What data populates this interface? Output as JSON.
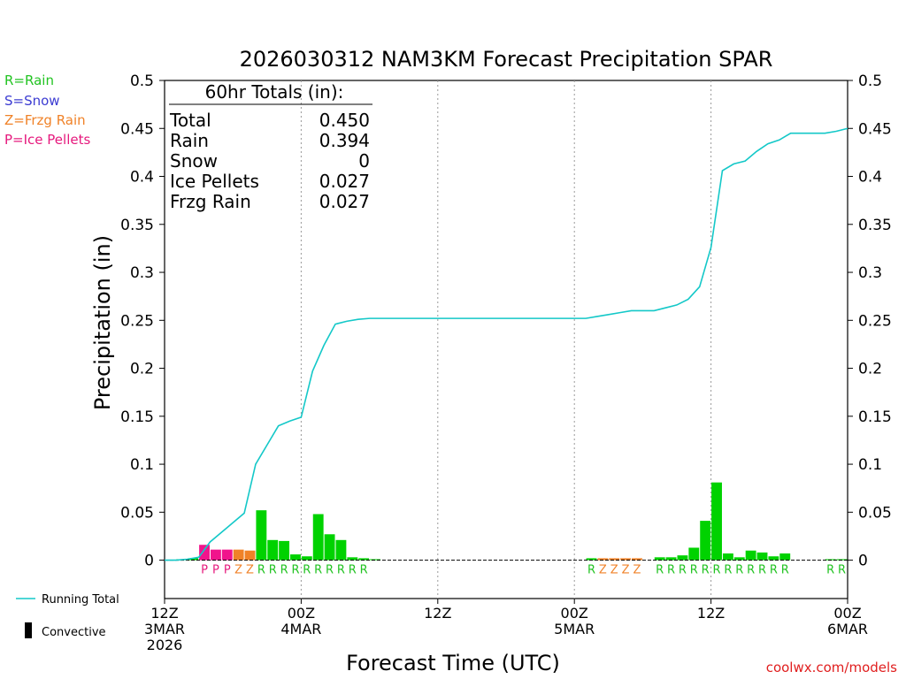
{
  "chart_data": {
    "type": "bar",
    "title": "2026030312 NAM3KM Forecast Precipitation SPAR",
    "xlabel": "Forecast Time (UTC)",
    "ylabel": "Precipitation (in)",
    "ylim": [
      -0.04,
      0.5
    ],
    "xlim_hours": [
      0,
      60
    ],
    "y_ticks": [
      "0.5",
      "0.45",
      "0.4",
      "0.35",
      "0.3",
      "0.25",
      "0.2",
      "0.15",
      "0.1",
      "0.05",
      "0"
    ],
    "x_ticks": [
      {
        "hour": 0,
        "lines": [
          "12Z",
          "3MAR",
          "2026"
        ]
      },
      {
        "hour": 12,
        "lines": [
          "00Z",
          "4MAR"
        ]
      },
      {
        "hour": 24,
        "lines": [
          "12Z"
        ]
      },
      {
        "hour": 36,
        "lines": [
          "00Z",
          "5MAR"
        ]
      },
      {
        "hour": 48,
        "lines": [
          "12Z"
        ]
      },
      {
        "hour": 60,
        "lines": [
          "00Z",
          "6MAR"
        ]
      }
    ],
    "totals": {
      "heading": "60hr Totals (in):",
      "rows": [
        {
          "label": "Total",
          "value": "0.450"
        },
        {
          "label": "Rain",
          "value": "0.394"
        },
        {
          "label": "Snow",
          "value": "0"
        },
        {
          "label": "Ice Pellets",
          "value": "0.027"
        },
        {
          "label": "Frzg Rain",
          "value": "0.027"
        }
      ]
    },
    "type_legend": [
      {
        "text": "R=Rain",
        "color": "#22c322"
      },
      {
        "text": "S=Snow",
        "color": "#3c3cd2"
      },
      {
        "text": "Z=Frzg Rain",
        "color": "#f08228"
      },
      {
        "text": "P=Ice Pellets",
        "color": "#e6197d"
      }
    ],
    "line_legend": {
      "running_total": "Running Total",
      "convective": "Convective"
    },
    "colors": {
      "R": "#00d200",
      "Z": "#f08228",
      "P": "#f0148c",
      "running_total": "#14c8c8",
      "convective": "#000000"
    },
    "letter_colors": {
      "R": "#22c322",
      "Z": "#f08228",
      "P": "#e6197d"
    },
    "hourly": [
      {
        "h": 1,
        "v": 0.0,
        "type": ""
      },
      {
        "h": 2,
        "v": 0.001,
        "type": ""
      },
      {
        "h": 3,
        "v": 0.002,
        "type": ""
      },
      {
        "h": 4,
        "v": 0.016,
        "type": "P"
      },
      {
        "h": 5,
        "v": 0.011,
        "type": "P"
      },
      {
        "h": 6,
        "v": 0.011,
        "type": "P"
      },
      {
        "h": 7,
        "v": 0.011,
        "type": "Z"
      },
      {
        "h": 8,
        "v": 0.01,
        "type": "Z"
      },
      {
        "h": 9,
        "v": 0.052,
        "type": "R"
      },
      {
        "h": 10,
        "v": 0.021,
        "type": "R"
      },
      {
        "h": 11,
        "v": 0.02,
        "type": "R"
      },
      {
        "h": 12,
        "v": 0.006,
        "type": "R"
      },
      {
        "h": 13,
        "v": 0.004,
        "type": "R"
      },
      {
        "h": 14,
        "v": 0.048,
        "type": "R"
      },
      {
        "h": 15,
        "v": 0.027,
        "type": "R"
      },
      {
        "h": 16,
        "v": 0.021,
        "type": "R"
      },
      {
        "h": 17,
        "v": 0.003,
        "type": "R"
      },
      {
        "h": 18,
        "v": 0.002,
        "type": "R"
      },
      {
        "h": 19,
        "v": 0.001,
        "type": ""
      },
      {
        "h": 20,
        "v": 0.0,
        "type": ""
      },
      {
        "h": 21,
        "v": 0.0,
        "type": ""
      },
      {
        "h": 22,
        "v": 0.0,
        "type": ""
      },
      {
        "h": 23,
        "v": 0.0,
        "type": ""
      },
      {
        "h": 24,
        "v": 0.0,
        "type": ""
      },
      {
        "h": 25,
        "v": 0.0,
        "type": ""
      },
      {
        "h": 26,
        "v": 0.0,
        "type": ""
      },
      {
        "h": 27,
        "v": 0.0,
        "type": ""
      },
      {
        "h": 28,
        "v": 0.0,
        "type": ""
      },
      {
        "h": 29,
        "v": 0.0,
        "type": ""
      },
      {
        "h": 30,
        "v": 0.0,
        "type": ""
      },
      {
        "h": 31,
        "v": 0.0,
        "type": ""
      },
      {
        "h": 32,
        "v": 0.0,
        "type": ""
      },
      {
        "h": 33,
        "v": 0.0,
        "type": ""
      },
      {
        "h": 34,
        "v": 0.0,
        "type": ""
      },
      {
        "h": 35,
        "v": 0.0,
        "type": ""
      },
      {
        "h": 36,
        "v": 0.0,
        "type": ""
      },
      {
        "h": 37,
        "v": 0.0,
        "type": ""
      },
      {
        "h": 38,
        "v": 0.002,
        "type": "R"
      },
      {
        "h": 39,
        "v": 0.002,
        "type": "Z"
      },
      {
        "h": 40,
        "v": 0.002,
        "type": "Z"
      },
      {
        "h": 41,
        "v": 0.002,
        "type": "Z"
      },
      {
        "h": 42,
        "v": 0.002,
        "type": "Z"
      },
      {
        "h": 43,
        "v": 0.0,
        "type": ""
      },
      {
        "h": 44,
        "v": 0.003,
        "type": "R"
      },
      {
        "h": 45,
        "v": 0.003,
        "type": "R"
      },
      {
        "h": 46,
        "v": 0.005,
        "type": "R"
      },
      {
        "h": 47,
        "v": 0.013,
        "type": "R"
      },
      {
        "h": 48,
        "v": 0.041,
        "type": "R"
      },
      {
        "h": 49,
        "v": 0.081,
        "type": "R"
      },
      {
        "h": 50,
        "v": 0.007,
        "type": "R"
      },
      {
        "h": 51,
        "v": 0.003,
        "type": "R"
      },
      {
        "h": 52,
        "v": 0.01,
        "type": "R"
      },
      {
        "h": 53,
        "v": 0.008,
        "type": "R"
      },
      {
        "h": 54,
        "v": 0.004,
        "type": "R"
      },
      {
        "h": 55,
        "v": 0.007,
        "type": "R"
      },
      {
        "h": 56,
        "v": 0.0,
        "type": ""
      },
      {
        "h": 57,
        "v": 0.0,
        "type": ""
      },
      {
        "h": 58,
        "v": 0.0,
        "type": ""
      },
      {
        "h": 59,
        "v": 0.001,
        "type": "R"
      },
      {
        "h": 60,
        "v": 0.001,
        "type": "R"
      }
    ],
    "running_total": [
      [
        0,
        0.0
      ],
      [
        1,
        0.0
      ],
      [
        2,
        0.001
      ],
      [
        3,
        0.003
      ],
      [
        4,
        0.019
      ],
      [
        5,
        0.029
      ],
      [
        6,
        0.039
      ],
      [
        7,
        0.049
      ],
      [
        8,
        0.1
      ],
      [
        9,
        0.12
      ],
      [
        10,
        0.14
      ],
      [
        11,
        0.145
      ],
      [
        12,
        0.149
      ],
      [
        13,
        0.197
      ],
      [
        14,
        0.224
      ],
      [
        15,
        0.246
      ],
      [
        16,
        0.249
      ],
      [
        17,
        0.251
      ],
      [
        18,
        0.252
      ],
      [
        36,
        0.252
      ],
      [
        37,
        0.252
      ],
      [
        38,
        0.254
      ],
      [
        39,
        0.256
      ],
      [
        40,
        0.258
      ],
      [
        41,
        0.26
      ],
      [
        42,
        0.26
      ],
      [
        43,
        0.26
      ],
      [
        44,
        0.263
      ],
      [
        45,
        0.266
      ],
      [
        46,
        0.272
      ],
      [
        47,
        0.285
      ],
      [
        48,
        0.326
      ],
      [
        49,
        0.406
      ],
      [
        50,
        0.413
      ],
      [
        51,
        0.416
      ],
      [
        52,
        0.426
      ],
      [
        53,
        0.434
      ],
      [
        54,
        0.438
      ],
      [
        55,
        0.445
      ],
      [
        56,
        0.445
      ],
      [
        57,
        0.445
      ],
      [
        58,
        0.445
      ],
      [
        59,
        0.447
      ],
      [
        60,
        0.45
      ]
    ]
  },
  "footer": {
    "credit": "coolwx.com/models"
  }
}
